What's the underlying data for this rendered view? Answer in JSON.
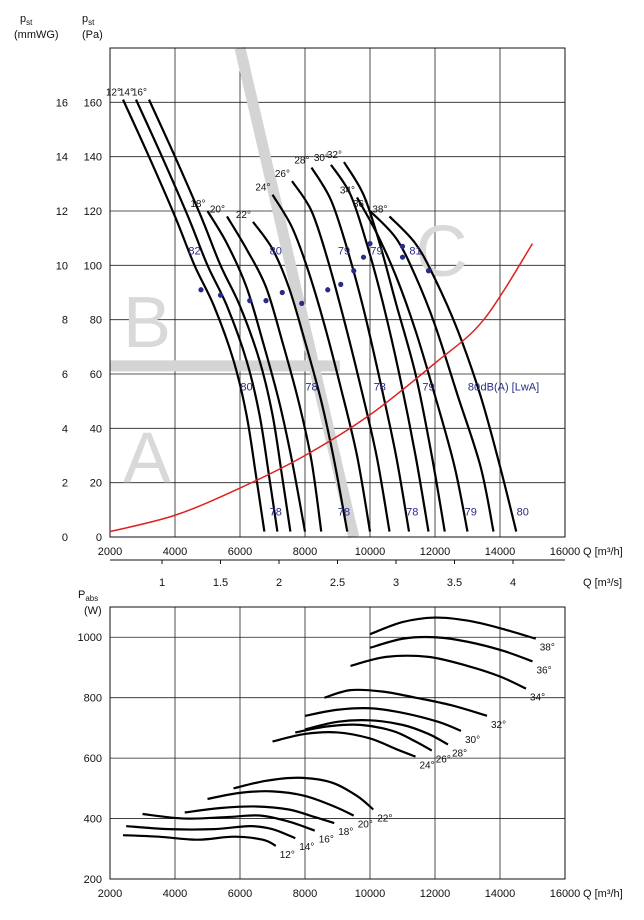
{
  "chart_data": [
    {
      "type": "line",
      "x_unit": "Q [m³/h]",
      "x2_unit": "Q [m³/s]",
      "y_left_unit": "p st (mmWG)",
      "y_unit": "p st (Pa)",
      "y_left_head": "p",
      "y_left_sub": "st",
      "y_left_paren": "(mmWG)",
      "y_head": "p",
      "y_sub": "st",
      "y_paren": "(Pa)",
      "xlim": [
        2000,
        16000
      ],
      "ylim": [
        0,
        180
      ],
      "x_ticks": [
        2000,
        4000,
        6000,
        8000,
        10000,
        12000,
        14000,
        16000
      ],
      "x_tick_labels": [
        "2000",
        "4000",
        "6000",
        "8000",
        "10000",
        "12000",
        "14000",
        "16000"
      ],
      "x2_ticks": [
        1,
        1.5,
        2,
        2.5,
        3,
        3.5,
        4
      ],
      "x2_tick_labels": [
        "1",
        "1.5",
        "2",
        "2.5",
        "3",
        "3.5",
        "4"
      ],
      "y_ticks": [
        0,
        20,
        40,
        60,
        80,
        100,
        120,
        140,
        160
      ],
      "y_tick_labels": [
        "0",
        "20",
        "40",
        "60",
        "80",
        "100",
        "120",
        "140",
        "160"
      ],
      "y_left_ticks": [
        0,
        2,
        4,
        6,
        8,
        10,
        12,
        14,
        16
      ],
      "y_left_tick_labels": [
        "0",
        "2",
        "4",
        "6",
        "8",
        "10",
        "12",
        "14",
        "16"
      ],
      "grid": true,
      "zones": [
        "A",
        "B",
        "C"
      ],
      "series": [
        {
          "name": "12°",
          "points": [
            [
              2400,
              161
            ],
            [
              3200,
              140
            ],
            [
              4000,
              118
            ],
            [
              4600,
              100
            ],
            [
              5200,
              85
            ],
            [
              5800,
              65
            ],
            [
              6200,
              45
            ],
            [
              6500,
              22
            ],
            [
              6750,
              2
            ]
          ]
        },
        {
          "name": "14°",
          "points": [
            [
              2800,
              161
            ],
            [
              3600,
              140
            ],
            [
              4400,
              118
            ],
            [
              5000,
              100
            ],
            [
              5600,
              85
            ],
            [
              6200,
              65
            ],
            [
              6600,
              45
            ],
            [
              6900,
              22
            ],
            [
              7150,
              2
            ]
          ]
        },
        {
          "name": "16°",
          "points": [
            [
              3200,
              161
            ],
            [
              4000,
              140
            ],
            [
              4800,
              118
            ],
            [
              5400,
              100
            ],
            [
              6000,
              85
            ],
            [
              6600,
              65
            ],
            [
              7000,
              45
            ],
            [
              7300,
              22
            ],
            [
              7550,
              2
            ]
          ]
        },
        {
          "name": "18°",
          "points": [
            [
              5000,
              120
            ],
            [
              5600,
              108
            ],
            [
              6200,
              92
            ],
            [
              6700,
              72
            ],
            [
              7200,
              50
            ],
            [
              7600,
              28
            ],
            [
              8000,
              2
            ]
          ]
        },
        {
          "name": "20°",
          "points": [
            [
              5600,
              118
            ],
            [
              6200,
              106
            ],
            [
              6800,
              92
            ],
            [
              7300,
              72
            ],
            [
              7800,
              50
            ],
            [
              8200,
              28
            ],
            [
              8500,
              2
            ]
          ]
        },
        {
          "name": "22°",
          "points": [
            [
              6400,
              116
            ],
            [
              7000,
              106
            ],
            [
              7500,
              92
            ],
            [
              8000,
              72
            ],
            [
              8500,
              50
            ],
            [
              8900,
              28
            ],
            [
              9300,
              2
            ]
          ]
        },
        {
          "name": "24°",
          "points": [
            [
              7000,
              126
            ],
            [
              7600,
              114
            ],
            [
              8100,
              98
            ],
            [
              8600,
              78
            ],
            [
              9100,
              55
            ],
            [
              9600,
              30
            ],
            [
              10000,
              2
            ]
          ]
        },
        {
          "name": "26°",
          "points": [
            [
              7600,
              131
            ],
            [
              8200,
              120
            ],
            [
              8700,
              102
            ],
            [
              9200,
              80
            ],
            [
              9700,
              56
            ],
            [
              10200,
              30
            ],
            [
              10600,
              2
            ]
          ]
        },
        {
          "name": "28°",
          "points": [
            [
              8200,
              136
            ],
            [
              8800,
              124
            ],
            [
              9300,
              106
            ],
            [
              9800,
              84
            ],
            [
              10300,
              58
            ],
            [
              10800,
              30
            ],
            [
              11200,
              2
            ]
          ]
        },
        {
          "name": "30°",
          "points": [
            [
              8800,
              137
            ],
            [
              9400,
              126
            ],
            [
              9900,
              108
            ],
            [
              10400,
              86
            ],
            [
              10900,
              60
            ],
            [
              11400,
              30
            ],
            [
              11800,
              2
            ]
          ]
        },
        {
          "name": "32°",
          "points": [
            [
              9200,
              138
            ],
            [
              9800,
              126
            ],
            [
              10300,
              108
            ],
            [
              10800,
              86
            ],
            [
              11400,
              60
            ],
            [
              11900,
              30
            ],
            [
              12300,
              2
            ]
          ]
        },
        {
          "name": "34°",
          "points": [
            [
              9600,
              125
            ],
            [
              10200,
              112
            ],
            [
              10800,
              96
            ],
            [
              11400,
              76
            ],
            [
              12000,
              52
            ],
            [
              12600,
              26
            ],
            [
              13000,
              2
            ]
          ]
        },
        {
          "name": "36°",
          "points": [
            [
              10000,
              120
            ],
            [
              10800,
              110
            ],
            [
              11400,
              96
            ],
            [
              12000,
              78
            ],
            [
              12700,
              52
            ],
            [
              13400,
              26
            ],
            [
              13800,
              2
            ]
          ]
        },
        {
          "name": "38°",
          "points": [
            [
              10600,
              118
            ],
            [
              11400,
              108
            ],
            [
              12000,
              95
            ],
            [
              12700,
              76
            ],
            [
              13400,
              52
            ],
            [
              14000,
              26
            ],
            [
              14500,
              2
            ]
          ]
        }
      ],
      "system_curve": [
        [
          2000,
          2
        ],
        [
          4000,
          8
        ],
        [
          6000,
          18
        ],
        [
          8000,
          30
        ],
        [
          10000,
          45
        ],
        [
          12000,
          64
        ],
        [
          13500,
          80
        ],
        [
          15000,
          108
        ]
      ],
      "blade_labels": [
        "12°",
        "14°",
        "16°",
        "18°",
        "20°",
        "22°",
        "24°",
        "26°",
        "28°",
        "30°",
        "32°",
        "34°",
        "36°",
        "38°"
      ],
      "db_labels_top": [
        "82",
        "80",
        "79",
        "79",
        "81"
      ],
      "db_labels_mid": [
        "80",
        "78",
        "78",
        "79",
        "80"
      ],
      "db_unit": "dB(A) [LwA]",
      "db_labels_bottom": [
        "78",
        "78",
        "78",
        "79",
        "80"
      ],
      "marker_points": [
        [
          4800,
          91
        ],
        [
          5400,
          89
        ],
        [
          6300,
          87
        ],
        [
          6800,
          87
        ],
        [
          7300,
          90
        ],
        [
          7900,
          86
        ],
        [
          8700,
          91
        ],
        [
          9100,
          93
        ],
        [
          9500,
          98
        ],
        [
          9800,
          103
        ],
        [
          10000,
          108
        ],
        [
          11000,
          103
        ],
        [
          11000,
          107
        ],
        [
          11800,
          98
        ]
      ]
    },
    {
      "type": "line",
      "x_unit": "Q [m³/h]",
      "y_unit": "P abs (W)",
      "y_head": "P",
      "y_sub": "abs",
      "y_paren": "(W)",
      "xlim": [
        2000,
        16000
      ],
      "ylim": [
        200,
        1100
      ],
      "x_ticks": [
        2000,
        4000,
        6000,
        8000,
        10000,
        12000,
        14000,
        16000
      ],
      "x_tick_labels": [
        "2000",
        "4000",
        "6000",
        "8000",
        "10000",
        "12000",
        "14000",
        "16000"
      ],
      "y_ticks": [
        200,
        400,
        600,
        800,
        1000
      ],
      "y_tick_labels": [
        "200",
        "400",
        "600",
        "800",
        "1000"
      ],
      "grid": true,
      "series": [
        {
          "name": "12°",
          "points": [
            [
              2400,
              345
            ],
            [
              3500,
              340
            ],
            [
              4700,
              330
            ],
            [
              5800,
              340
            ],
            [
              6700,
              330
            ],
            [
              7100,
              310
            ]
          ]
        },
        {
          "name": "14°",
          "points": [
            [
              2500,
              375
            ],
            [
              3800,
              365
            ],
            [
              5200,
              365
            ],
            [
              6300,
              375
            ],
            [
              7000,
              365
            ],
            [
              7700,
              335
            ]
          ]
        },
        {
          "name": "16°",
          "points": [
            [
              3000,
              415
            ],
            [
              4300,
              400
            ],
            [
              5600,
              405
            ],
            [
              6600,
              410
            ],
            [
              7500,
              390
            ],
            [
              8300,
              360
            ]
          ]
        },
        {
          "name": "18°",
          "points": [
            [
              4300,
              420
            ],
            [
              5400,
              435
            ],
            [
              6500,
              440
            ],
            [
              7500,
              430
            ],
            [
              8300,
              405
            ],
            [
              8900,
              385
            ]
          ]
        },
        {
          "name": "20°",
          "points": [
            [
              5000,
              465
            ],
            [
              6000,
              485
            ],
            [
              7000,
              490
            ],
            [
              8000,
              475
            ],
            [
              8900,
              440
            ],
            [
              9500,
              410
            ]
          ]
        },
        {
          "name": "22°",
          "points": [
            [
              5800,
              500
            ],
            [
              6800,
              525
            ],
            [
              7800,
              535
            ],
            [
              8800,
              520
            ],
            [
              9600,
              475
            ],
            [
              10100,
              430
            ]
          ]
        },
        {
          "name": "24°",
          "points": [
            [
              7000,
              655
            ],
            [
              8000,
              680
            ],
            [
              9000,
              685
            ],
            [
              10000,
              665
            ],
            [
              10800,
              630
            ],
            [
              11400,
              605
            ]
          ]
        },
        {
          "name": "26°",
          "points": [
            [
              7700,
              685
            ],
            [
              8700,
              705
            ],
            [
              9700,
              710
            ],
            [
              10700,
              690
            ],
            [
              11400,
              655
            ],
            [
              11900,
              625
            ]
          ]
        },
        {
          "name": "28°",
          "points": [
            [
              8000,
              695
            ],
            [
              9000,
              720
            ],
            [
              10000,
              725
            ],
            [
              11000,
              710
            ],
            [
              11800,
              680
            ],
            [
              12400,
              645
            ]
          ]
        },
        {
          "name": "30°",
          "points": [
            [
              8000,
              740
            ],
            [
              9000,
              760
            ],
            [
              10000,
              765
            ],
            [
              11000,
              750
            ],
            [
              12100,
              720
            ],
            [
              12800,
              690
            ]
          ]
        },
        {
          "name": "32°",
          "points": [
            [
              8600,
              800
            ],
            [
              9400,
              825
            ],
            [
              10400,
              820
            ],
            [
              11400,
              800
            ],
            [
              12500,
              775
            ],
            [
              13600,
              740
            ]
          ]
        },
        {
          "name": "34°",
          "points": [
            [
              9400,
              905
            ],
            [
              10500,
              935
            ],
            [
              11800,
              935
            ],
            [
              13000,
              905
            ],
            [
              14000,
              870
            ],
            [
              14800,
              830
            ]
          ]
        },
        {
          "name": "36°",
          "points": [
            [
              10000,
              965
            ],
            [
              11000,
              995
            ],
            [
              12000,
              1000
            ],
            [
              13000,
              985
            ],
            [
              14100,
              955
            ],
            [
              15000,
              920
            ]
          ]
        },
        {
          "name": "38°",
          "points": [
            [
              10000,
              1010
            ],
            [
              11000,
              1050
            ],
            [
              12000,
              1065
            ],
            [
              13000,
              1055
            ],
            [
              14000,
              1030
            ],
            [
              15100,
              995
            ]
          ]
        }
      ]
    }
  ]
}
